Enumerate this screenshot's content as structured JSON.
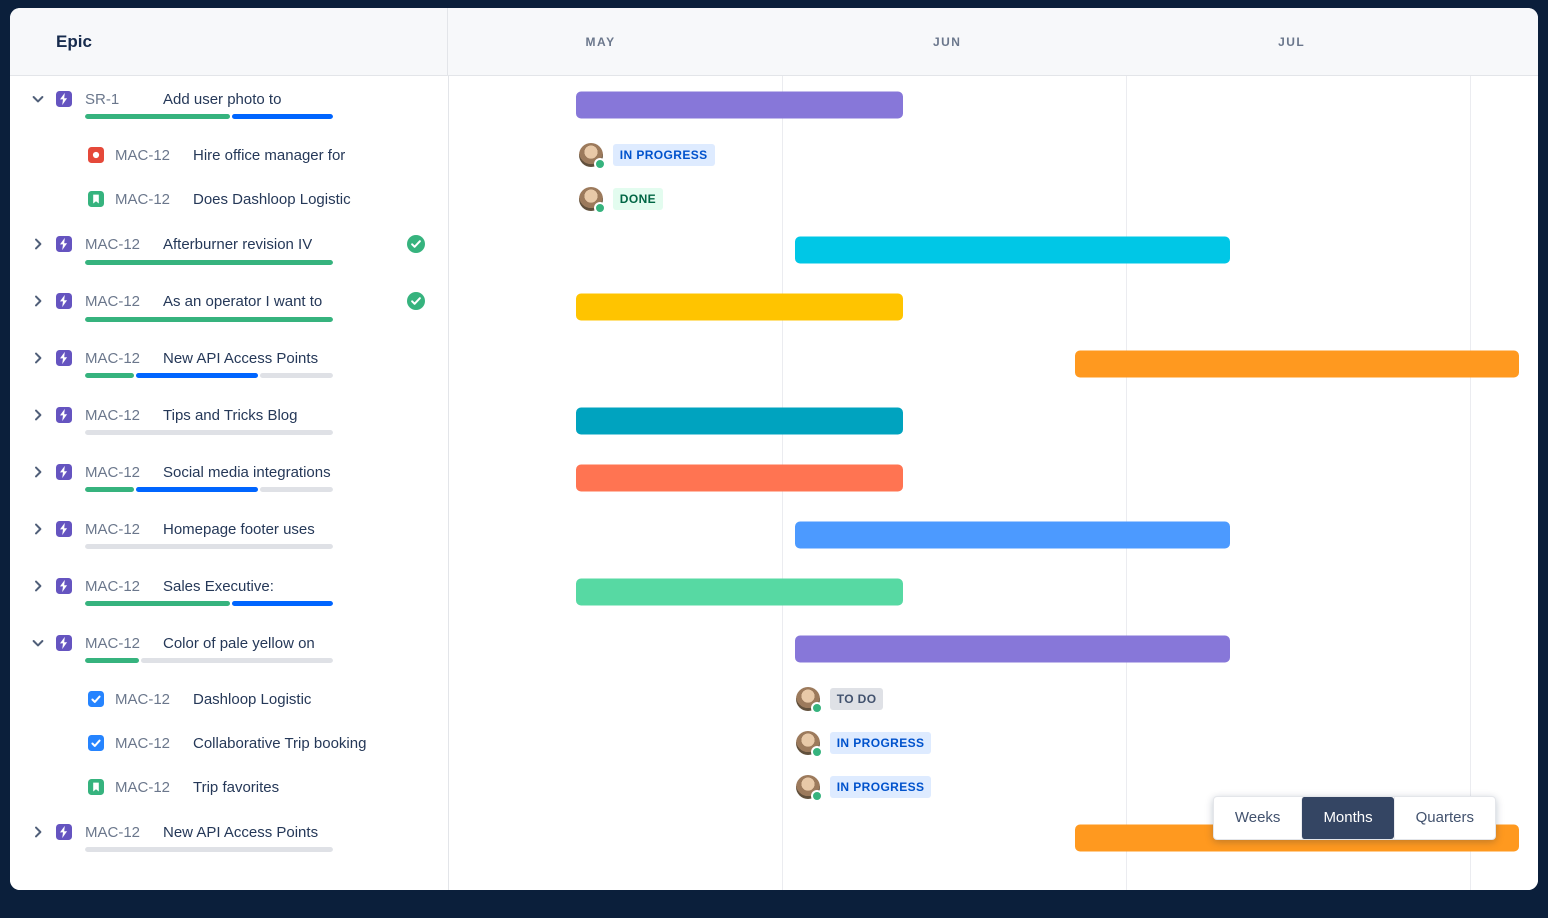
{
  "header": {
    "epic_label": "Epic",
    "months": [
      "MAY",
      "JUN",
      "JUL"
    ]
  },
  "view_toggle": {
    "options": [
      "Weeks",
      "Months",
      "Quarters"
    ],
    "selected": "Months"
  },
  "status_styles": {
    "IN PROGRESS": {
      "bg": "#DEEBFF",
      "fg": "#0052CC"
    },
    "DONE": {
      "bg": "#E3FCEF",
      "fg": "#006644"
    },
    "TO DO": {
      "bg": "#DFE1E6",
      "fg": "#42526E"
    }
  },
  "colors": {
    "epic_icon": "#6554C0",
    "bug_icon": "#E5493A",
    "story_icon": "#36B37E",
    "task_icon": "#2684FF",
    "progress_done": "#36B37E",
    "progress_inprogress": "#0065FF",
    "progress_todo": "#DFE1E6",
    "completed_check": "#36B37E"
  },
  "rows": [
    {
      "type": "epic",
      "expanded": true,
      "icon": "epic",
      "key": "SR-1",
      "title": "Add user photo to",
      "completed": false,
      "progress": [
        {
          "color": "#36B37E",
          "pct": 59
        },
        {
          "color": "#0065FF",
          "pct": 41
        }
      ],
      "bar": {
        "color": "#8777D9",
        "start_pct": 11.7,
        "width_pct": 30.0
      }
    },
    {
      "type": "child",
      "icon": "bug",
      "key": "MAC-12",
      "title": "Hire office manager for",
      "status": "IN PROGRESS",
      "offset_pct": 12.0
    },
    {
      "type": "child",
      "icon": "story",
      "key": "MAC-12",
      "title": "Does Dashloop Logistic",
      "status": "DONE",
      "offset_pct": 12.0
    },
    {
      "type": "epic",
      "expanded": false,
      "icon": "epic",
      "key": "MAC-12",
      "title": "Afterburner revision IV",
      "completed": true,
      "progress": [
        {
          "color": "#36B37E",
          "pct": 100
        }
      ],
      "bar": {
        "color": "#00C7E6",
        "start_pct": 31.8,
        "width_pct": 39.9
      }
    },
    {
      "type": "epic",
      "expanded": false,
      "icon": "epic",
      "key": "MAC-12",
      "title": "As an operator I want to",
      "completed": true,
      "progress": [
        {
          "color": "#36B37E",
          "pct": 100
        }
      ],
      "bar": {
        "color": "#FFC400",
        "start_pct": 11.7,
        "width_pct": 30.0
      }
    },
    {
      "type": "epic",
      "expanded": false,
      "icon": "epic",
      "key": "MAC-12",
      "title": "New API Access Points",
      "completed": false,
      "progress": [
        {
          "color": "#36B37E",
          "pct": 20
        },
        {
          "color": "#0065FF",
          "pct": 50
        },
        {
          "color": "#DFE1E6",
          "pct": 30
        }
      ],
      "bar": {
        "color": "#FF991F",
        "start_pct": 57.5,
        "width_pct": 40.8
      }
    },
    {
      "type": "epic",
      "expanded": false,
      "icon": "epic",
      "key": "MAC-12",
      "title": "Tips and Tricks Blog",
      "completed": false,
      "progress": [
        {
          "color": "#DFE1E6",
          "pct": 100
        }
      ],
      "bar": {
        "color": "#00A3BF",
        "start_pct": 11.7,
        "width_pct": 30.0
      }
    },
    {
      "type": "epic",
      "expanded": false,
      "icon": "epic",
      "key": "MAC-12",
      "title": "Social media integrations",
      "completed": false,
      "progress": [
        {
          "color": "#36B37E",
          "pct": 20
        },
        {
          "color": "#0065FF",
          "pct": 50
        },
        {
          "color": "#DFE1E6",
          "pct": 30
        }
      ],
      "bar": {
        "color": "#FF7452",
        "start_pct": 11.7,
        "width_pct": 30.0
      }
    },
    {
      "type": "epic",
      "expanded": false,
      "icon": "epic",
      "key": "MAC-12",
      "title": "Homepage footer uses",
      "completed": false,
      "progress": [
        {
          "color": "#DFE1E6",
          "pct": 100
        }
      ],
      "bar": {
        "color": "#4C9AFF",
        "start_pct": 31.8,
        "width_pct": 39.9
      }
    },
    {
      "type": "epic",
      "expanded": false,
      "icon": "epic",
      "key": "MAC-12",
      "title": "Sales Executive:",
      "completed": false,
      "progress": [
        {
          "color": "#36B37E",
          "pct": 59
        },
        {
          "color": "#0065FF",
          "pct": 41
        }
      ],
      "bar": {
        "color": "#57D9A3",
        "start_pct": 11.7,
        "width_pct": 30.0
      }
    },
    {
      "type": "epic",
      "expanded": true,
      "icon": "epic",
      "key": "MAC-12",
      "title": "Color of pale yellow on",
      "completed": false,
      "progress": [
        {
          "color": "#36B37E",
          "pct": 22
        },
        {
          "color": "#DFE1E6",
          "pct": 78
        }
      ],
      "bar": {
        "color": "#8777D9",
        "start_pct": 31.8,
        "width_pct": 39.9
      }
    },
    {
      "type": "child",
      "icon": "task",
      "key": "MAC-12",
      "title": "Dashloop Logistic",
      "status": "TO DO",
      "offset_pct": 31.9
    },
    {
      "type": "child",
      "icon": "task",
      "key": "MAC-12",
      "title": "Collaborative Trip booking",
      "status": "IN PROGRESS",
      "offset_pct": 31.9
    },
    {
      "type": "child",
      "icon": "story",
      "key": "MAC-12",
      "title": "Trip favorites",
      "status": "IN PROGRESS",
      "offset_pct": 31.9
    },
    {
      "type": "epic",
      "expanded": false,
      "icon": "epic",
      "key": "MAC-12",
      "title": "New API Access Points",
      "completed": false,
      "progress": [
        {
          "color": "#DFE1E6",
          "pct": 100
        }
      ],
      "bar": {
        "color": "#FF991F",
        "start_pct": 57.5,
        "width_pct": 40.8
      }
    }
  ]
}
